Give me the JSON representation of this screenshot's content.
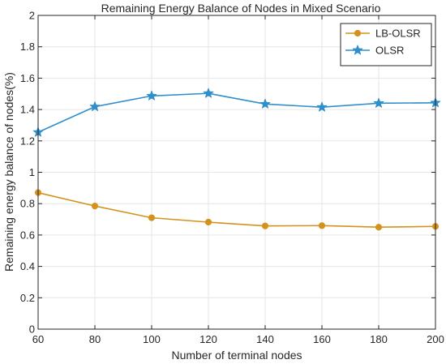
{
  "chart_data": {
    "type": "line",
    "title": "Remaining Energy Balance of Nodes in Mixed Scenario",
    "xlabel": "Number of terminal nodes",
    "ylabel": "Remaining energy balance of nodes(%)",
    "x": [
      60,
      80,
      100,
      120,
      140,
      160,
      180,
      200
    ],
    "xlim": [
      60,
      200
    ],
    "ylim": [
      0,
      2
    ],
    "xticks": [
      "60",
      "80",
      "100",
      "120",
      "140",
      "160",
      "180",
      "200"
    ],
    "yticks": [
      "0",
      "0.2",
      "0.4",
      "0.6",
      "0.8",
      "1",
      "1.2",
      "1.4",
      "1.6",
      "1.8",
      "2"
    ],
    "grid": true,
    "legend_position": "top-right",
    "series": [
      {
        "name": "LB-OLSR",
        "color": "#D4921D",
        "marker": "circle",
        "values": [
          0.87,
          0.785,
          0.71,
          0.682,
          0.658,
          0.66,
          0.65,
          0.655
        ]
      },
      {
        "name": "OLSR",
        "color": "#2F8FCB",
        "marker": "star",
        "values": [
          1.255,
          1.418,
          1.487,
          1.503,
          1.435,
          1.415,
          1.44,
          1.443
        ]
      }
    ]
  }
}
